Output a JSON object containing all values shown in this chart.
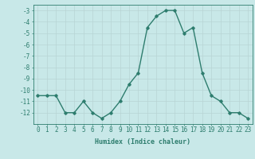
{
  "x": [
    0,
    1,
    2,
    3,
    4,
    5,
    6,
    7,
    8,
    9,
    10,
    11,
    12,
    13,
    14,
    15,
    16,
    17,
    18,
    19,
    20,
    21,
    22,
    23
  ],
  "y": [
    -10.5,
    -10.5,
    -10.5,
    -12.0,
    -12.0,
    -11.0,
    -12.0,
    -12.5,
    -12.0,
    -11.0,
    -9.5,
    -8.5,
    -4.5,
    -3.5,
    -3.0,
    -3.0,
    -5.0,
    -4.5,
    -8.5,
    -10.5,
    -11.0,
    -12.0,
    -12.0,
    -12.5
  ],
  "line_color": "#2e7d6e",
  "marker": "D",
  "marker_size": 1.8,
  "bg_color": "#c8e8e8",
  "grid_color": "#b8d4d4",
  "xlabel": "Humidex (Indice chaleur)",
  "xlim": [
    -0.5,
    23.5
  ],
  "ylim": [
    -13,
    -2.5
  ],
  "yticks": [
    -3,
    -4,
    -5,
    -6,
    -7,
    -8,
    -9,
    -10,
    -11,
    -12
  ],
  "xticks": [
    0,
    1,
    2,
    3,
    4,
    5,
    6,
    7,
    8,
    9,
    10,
    11,
    12,
    13,
    14,
    15,
    16,
    17,
    18,
    19,
    20,
    21,
    22,
    23
  ],
  "xlabel_fontsize": 6.0,
  "tick_fontsize": 5.5,
  "line_width": 1.0
}
